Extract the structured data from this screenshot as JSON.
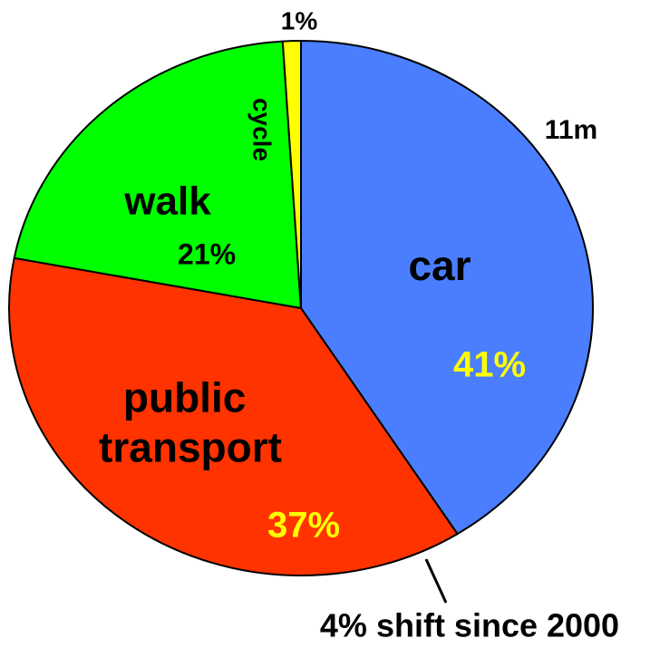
{
  "chart_data": {
    "type": "pie",
    "categories": [
      "car",
      "public transport",
      "walk",
      "cycle"
    ],
    "values": [
      41,
      37,
      21,
      1
    ],
    "value_labels": [
      "41%",
      "37%",
      "21%",
      "1%"
    ],
    "colors": [
      "#4a7eff",
      "#ff3300",
      "#00ff00",
      "#ffff00"
    ],
    "value_label_colors": [
      "#ffff00",
      "#ffff00",
      "#000000",
      "#000000"
    ],
    "shift": {
      "value": 4,
      "label": "4% shift since 2000"
    },
    "annotations": [
      "11m"
    ]
  }
}
